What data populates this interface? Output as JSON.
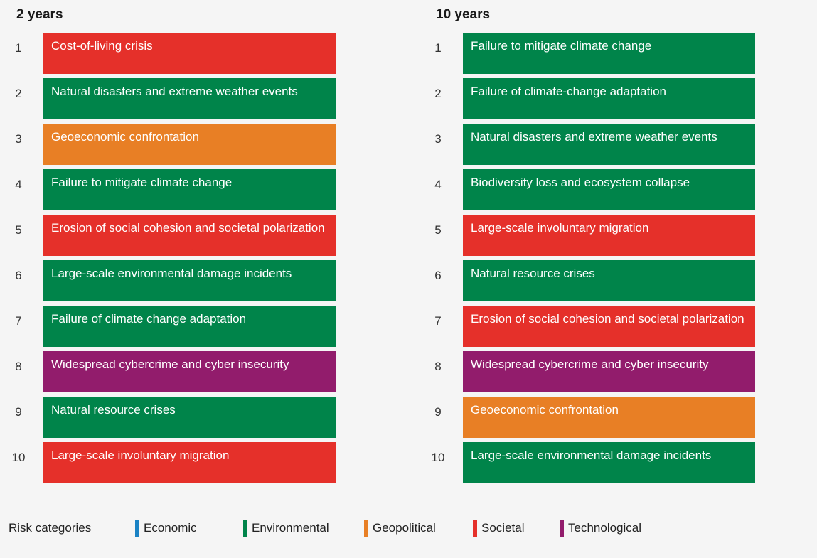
{
  "chart_data": {
    "type": "table",
    "title": "",
    "columns": [
      {
        "heading": "2 years",
        "rows": [
          {
            "rank": "1",
            "label": "Cost-of-living crisis",
            "category": "societal"
          },
          {
            "rank": "2",
            "label": "Natural disasters and extreme weather events",
            "category": "environmental"
          },
          {
            "rank": "3",
            "label": "Geoeconomic confrontation",
            "category": "geopolitical"
          },
          {
            "rank": "4",
            "label": "Failure to mitigate climate change",
            "category": "environmental"
          },
          {
            "rank": "5",
            "label": "Erosion of social cohesion and societal polarization",
            "category": "societal"
          },
          {
            "rank": "6",
            "label": "Large-scale environmental damage incidents",
            "category": "environmental"
          },
          {
            "rank": "7",
            "label": "Failure of climate change adaptation",
            "category": "environmental"
          },
          {
            "rank": "8",
            "label": "Widespread cybercrime and cyber insecurity",
            "category": "technological"
          },
          {
            "rank": "9",
            "label": "Natural resource crises",
            "category": "environmental"
          },
          {
            "rank": "10",
            "label": "Large-scale involuntary migration",
            "category": "societal"
          }
        ]
      },
      {
        "heading": "10 years",
        "rows": [
          {
            "rank": "1",
            "label": "Failure to mitigate climate change",
            "category": "environmental"
          },
          {
            "rank": "2",
            "label": "Failure of climate-change adaptation",
            "category": "environmental"
          },
          {
            "rank": "3",
            "label": "Natural disasters and extreme weather events",
            "category": "environmental"
          },
          {
            "rank": "4",
            "label": "Biodiversity loss and ecosystem collapse",
            "category": "environmental"
          },
          {
            "rank": "5",
            "label": "Large-scale involuntary migration",
            "category": "societal"
          },
          {
            "rank": "6",
            "label": "Natural resource crises",
            "category": "environmental"
          },
          {
            "rank": "7",
            "label": "Erosion of social cohesion and societal polarization",
            "category": "societal"
          },
          {
            "rank": "8",
            "label": "Widespread cybercrime and cyber insecurity",
            "category": "technological"
          },
          {
            "rank": "9",
            "label": "Geoeconomic confrontation",
            "category": "geopolitical"
          },
          {
            "rank": "10",
            "label": "Large-scale environmental damage incidents",
            "category": "environmental"
          }
        ]
      }
    ],
    "legend": {
      "title": "Risk categories",
      "items": [
        {
          "key": "economic",
          "label": "Economic",
          "color": "#1a82c4"
        },
        {
          "key": "environmental",
          "label": "Environmental",
          "color": "#00844a"
        },
        {
          "key": "geopolitical",
          "label": "Geopolitical",
          "color": "#e87f25"
        },
        {
          "key": "societal",
          "label": "Societal",
          "color": "#e5302a"
        },
        {
          "key": "technological",
          "label": "Technological",
          "color": "#921c6c"
        }
      ]
    }
  }
}
